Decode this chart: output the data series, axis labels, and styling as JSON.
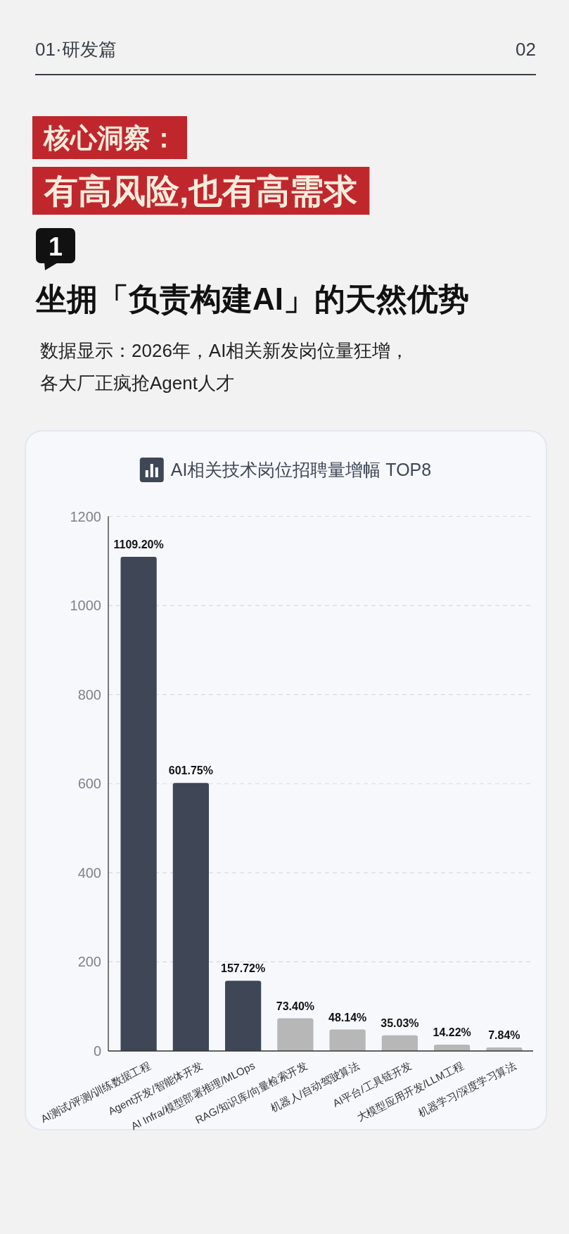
{
  "chart_data": {
    "type": "bar",
    "title": "AI相关技术岗位招聘量增幅 TOP8",
    "categories": [
      "AI测试/评测/训练数据工程",
      "Agent开发/智能体开发",
      "AI Infra/模型部署推理/MLOps",
      "RAG/知识库/向量检索开发",
      "机器人/自动驾驶算法",
      "AI平台/工具链开发",
      "大模型应用开发/LLM工程",
      "机器学习/深度学习算法"
    ],
    "values": [
      1109.2,
      601.75,
      157.72,
      73.4,
      48.14,
      35.03,
      14.22,
      7.84
    ],
    "colors": [
      "#3f4756",
      "#3f4756",
      "#3f4756",
      "#b7b7b7",
      "#b7b7b7",
      "#b7b7b7",
      "#b7b7b7",
      "#b7b7b7"
    ],
    "value_labels": [
      "1109.20%",
      "601.75%",
      "157.72%",
      "73.40%",
      "48.14%",
      "35.03%",
      "14.22%",
      "7.84%"
    ],
    "ylim": [
      0,
      1200
    ],
    "yticks": [
      0,
      200,
      400,
      600,
      800,
      1000,
      1200
    ],
    "grid": "y",
    "annotations": [
      "01·研发篇",
      "02",
      "核心洞察：",
      "有高风险,也有高需求",
      "1",
      "坐拥「负责构建AI」的天然优势",
      "数据显示：2026年，AI相关新发岗位量狂增，",
      "各大厂正疯抢Agent人才"
    ]
  }
}
